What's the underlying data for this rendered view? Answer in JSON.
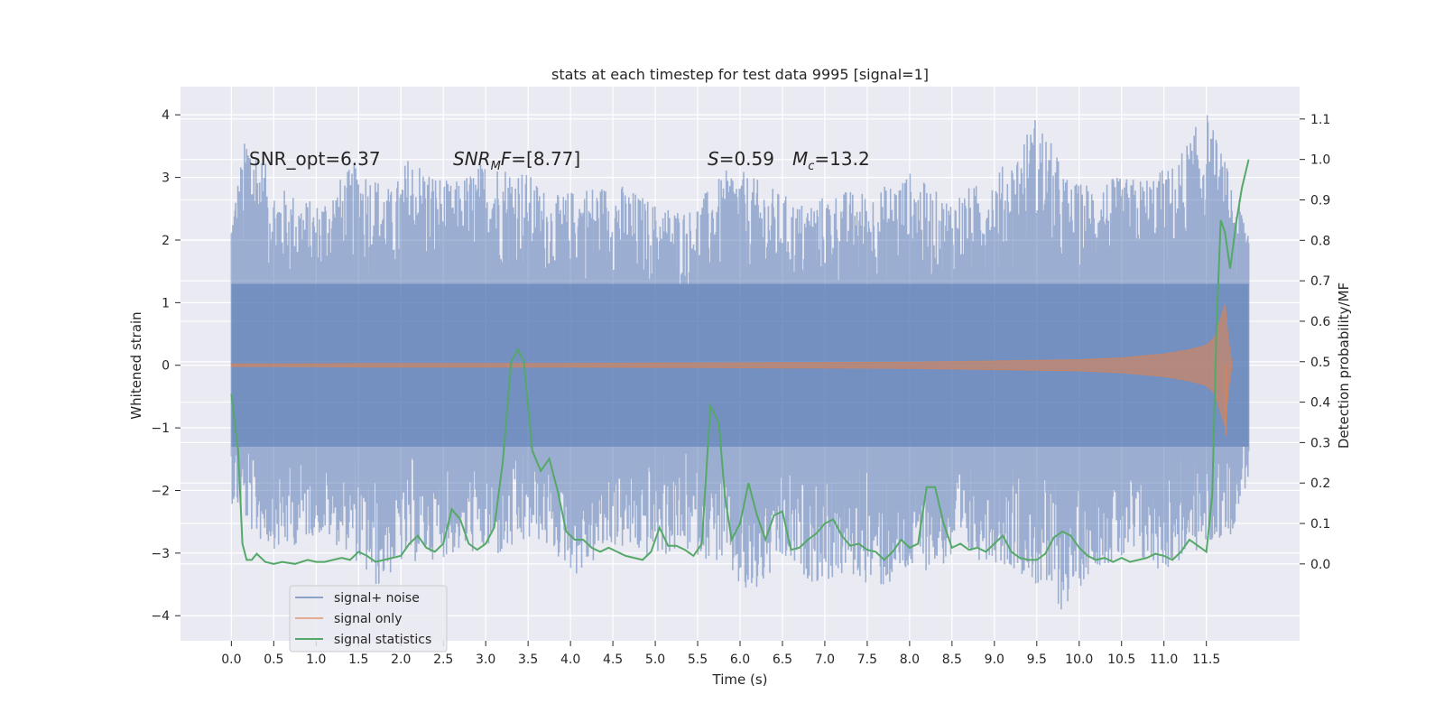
{
  "chart_data": {
    "type": "line",
    "title": "stats at each timestep for test data 9995 [signal=1]",
    "xlabel": "Time (s)",
    "ylabel": "Whitened strain",
    "y2label": "Detection probability/MF",
    "xlim": [
      -0.6,
      12.6
    ],
    "ylim": [
      -4.4,
      4.45
    ],
    "y2lim": [
      -0.19,
      1.18
    ],
    "xticks": [
      0.0,
      0.5,
      1.0,
      1.5,
      2.0,
      2.5,
      3.0,
      3.5,
      4.0,
      4.5,
      5.0,
      5.5,
      6.0,
      6.5,
      7.0,
      7.5,
      8.0,
      8.5,
      9.0,
      9.5,
      10.0,
      10.5,
      11.0,
      11.5
    ],
    "xtick_labels": [
      "0.0",
      "0.5",
      "1.0",
      "1.5",
      "2.0",
      "2.5",
      "3.0",
      "3.5",
      "4.0",
      "4.5",
      "5.0",
      "5.5",
      "6.0",
      "6.5",
      "7.0",
      "7.5",
      "8.0",
      "8.5",
      "9.0",
      "9.5",
      "10.0",
      "10.5",
      "11.0",
      "11.5"
    ],
    "yticks": [
      4,
      3,
      2,
      1,
      0,
      -1,
      -2,
      -3,
      -4
    ],
    "ytick_labels": [
      "4",
      "3",
      "2",
      "1",
      "0",
      "−1",
      "−2",
      "−3",
      "−4"
    ],
    "y2ticks": [
      1.1,
      1.0,
      0.9,
      0.8,
      0.7,
      0.6,
      0.5,
      0.4,
      0.3,
      0.2,
      0.1,
      0.0
    ],
    "y2tick_labels": [
      "1.1",
      "1.0",
      "0.9",
      "0.8",
      "0.7",
      "0.6",
      "0.5",
      "0.4",
      "0.3",
      "0.2",
      "0.1",
      "0.0"
    ],
    "grid": true,
    "legend_position": "bottom-left",
    "annotations": {
      "snr_opt": "SNR_opt=6.37",
      "snr_mf_sym": "SNR",
      "snr_mf_sub": "M",
      "snr_mf_sym2": "F",
      "snr_mf_val": "=[8.77]",
      "s_sym": "S",
      "s_val": "=0.59",
      "mc_sym": "M",
      "mc_sub": "c",
      "mc_val": "=13.2"
    },
    "series": [
      {
        "name": "signal+ noise",
        "color": "#4c72b0",
        "axis": "left",
        "x_range": [
          0.0,
          12.0
        ],
        "envelope_upper": [
          [
            0,
            2.5
          ],
          [
            0.2,
            3.9
          ],
          [
            0.5,
            2.9
          ],
          [
            1.0,
            2.6
          ],
          [
            1.5,
            3.3
          ],
          [
            1.9,
            2.8
          ],
          [
            2.1,
            3.4
          ],
          [
            2.6,
            2.9
          ],
          [
            3.0,
            3.3
          ],
          [
            3.4,
            3.2
          ],
          [
            3.8,
            2.7
          ],
          [
            4.2,
            2.9
          ],
          [
            4.6,
            2.9
          ],
          [
            5.0,
            2.6
          ],
          [
            5.4,
            2.5
          ],
          [
            5.9,
            3.2
          ],
          [
            6.3,
            2.9
          ],
          [
            6.7,
            2.6
          ],
          [
            7.2,
            2.8
          ],
          [
            7.6,
            2.8
          ],
          [
            8.0,
            3.1
          ],
          [
            8.4,
            2.7
          ],
          [
            8.8,
            2.9
          ],
          [
            9.2,
            3.3
          ],
          [
            9.5,
            4.05
          ],
          [
            9.9,
            2.9
          ],
          [
            10.3,
            3.0
          ],
          [
            10.7,
            3.0
          ],
          [
            11.1,
            3.2
          ],
          [
            11.5,
            4.1
          ],
          [
            11.9,
            2.6
          ],
          [
            12.0,
            2.4
          ]
        ],
        "envelope_lower": [
          [
            0,
            -2.2
          ],
          [
            0.3,
            -2.8
          ],
          [
            0.6,
            -3.0
          ],
          [
            1.0,
            -2.7
          ],
          [
            1.4,
            -3.0
          ],
          [
            1.7,
            -3.6
          ],
          [
            2.0,
            -3.2
          ],
          [
            2.4,
            -3.1
          ],
          [
            2.8,
            -3.0
          ],
          [
            3.2,
            -3.1
          ],
          [
            3.6,
            -2.8
          ],
          [
            4.1,
            -3.4
          ],
          [
            4.5,
            -2.9
          ],
          [
            4.9,
            -3.1
          ],
          [
            5.4,
            -3.0
          ],
          [
            5.8,
            -3.2
          ],
          [
            6.1,
            -3.85
          ],
          [
            6.5,
            -3.2
          ],
          [
            6.9,
            -3.5
          ],
          [
            7.3,
            -3.4
          ],
          [
            7.7,
            -3.6
          ],
          [
            8.1,
            -3.3
          ],
          [
            8.5,
            -3.2
          ],
          [
            8.9,
            -3.1
          ],
          [
            9.3,
            -3.3
          ],
          [
            9.8,
            -3.95
          ],
          [
            10.2,
            -3.2
          ],
          [
            10.7,
            -3.2
          ],
          [
            11.0,
            -3.3
          ],
          [
            11.4,
            -3.0
          ],
          [
            11.8,
            -2.7
          ],
          [
            12.0,
            -1.8
          ]
        ]
      },
      {
        "name": "signal only",
        "color": "#dd8452",
        "axis": "left",
        "x_range": [
          0.0,
          11.8
        ],
        "amplitude": [
          [
            0,
            0.02
          ],
          [
            2,
            0.03
          ],
          [
            4,
            0.03
          ],
          [
            6,
            0.04
          ],
          [
            8,
            0.05
          ],
          [
            9,
            0.07
          ],
          [
            10,
            0.09
          ],
          [
            10.5,
            0.12
          ],
          [
            11.0,
            0.18
          ],
          [
            11.3,
            0.25
          ],
          [
            11.5,
            0.32
          ],
          [
            11.6,
            0.45
          ],
          [
            11.68,
            0.8
          ],
          [
            11.72,
            1.0
          ],
          [
            11.76,
            0.4
          ],
          [
            11.8,
            0.05
          ]
        ],
        "min_extreme": [
          11.73,
          -1.12
        ]
      },
      {
        "name": "signal statistics",
        "color": "#55a868",
        "axis": "right",
        "x": [
          0.0,
          0.08,
          0.13,
          0.18,
          0.24,
          0.3,
          0.4,
          0.5,
          0.6,
          0.75,
          0.9,
          1.0,
          1.1,
          1.2,
          1.3,
          1.4,
          1.5,
          1.6,
          1.7,
          1.8,
          1.9,
          2.0,
          2.1,
          2.2,
          2.3,
          2.4,
          2.5,
          2.6,
          2.7,
          2.8,
          2.9,
          3.0,
          3.1,
          3.2,
          3.3,
          3.38,
          3.45,
          3.55,
          3.65,
          3.75,
          3.85,
          3.95,
          4.05,
          4.15,
          4.25,
          4.35,
          4.45,
          4.55,
          4.65,
          4.75,
          4.85,
          4.95,
          5.05,
          5.15,
          5.25,
          5.35,
          5.45,
          5.55,
          5.65,
          5.75,
          5.82,
          5.9,
          6.0,
          6.1,
          6.2,
          6.3,
          6.4,
          6.5,
          6.6,
          6.7,
          6.8,
          6.9,
          7.0,
          7.1,
          7.2,
          7.3,
          7.4,
          7.5,
          7.6,
          7.7,
          7.8,
          7.9,
          8.0,
          8.1,
          8.2,
          8.3,
          8.4,
          8.5,
          8.6,
          8.7,
          8.8,
          8.9,
          9.0,
          9.1,
          9.2,
          9.3,
          9.4,
          9.5,
          9.6,
          9.7,
          9.8,
          9.9,
          10.0,
          10.1,
          10.2,
          10.3,
          10.4,
          10.5,
          10.6,
          10.7,
          10.8,
          10.9,
          11.0,
          11.1,
          11.2,
          11.3,
          11.4,
          11.5,
          11.57,
          11.62,
          11.67,
          11.72,
          11.78,
          11.85,
          11.92,
          12.0
        ],
        "y": [
          0.42,
          0.28,
          0.05,
          0.01,
          0.01,
          0.025,
          0.005,
          0.0,
          0.005,
          0.0,
          0.01,
          0.005,
          0.005,
          0.01,
          0.015,
          0.01,
          0.03,
          0.02,
          0.005,
          0.01,
          0.015,
          0.02,
          0.05,
          0.07,
          0.04,
          0.03,
          0.05,
          0.135,
          0.11,
          0.05,
          0.035,
          0.05,
          0.09,
          0.25,
          0.5,
          0.53,
          0.5,
          0.28,
          0.23,
          0.26,
          0.18,
          0.08,
          0.06,
          0.06,
          0.04,
          0.03,
          0.04,
          0.03,
          0.02,
          0.015,
          0.01,
          0.03,
          0.09,
          0.045,
          0.045,
          0.035,
          0.02,
          0.05,
          0.39,
          0.35,
          0.17,
          0.06,
          0.1,
          0.2,
          0.12,
          0.06,
          0.12,
          0.13,
          0.035,
          0.04,
          0.06,
          0.075,
          0.1,
          0.11,
          0.07,
          0.045,
          0.05,
          0.035,
          0.03,
          0.01,
          0.03,
          0.06,
          0.04,
          0.05,
          0.19,
          0.19,
          0.1,
          0.04,
          0.05,
          0.035,
          0.04,
          0.03,
          0.05,
          0.07,
          0.03,
          0.015,
          0.01,
          0.01,
          0.025,
          0.065,
          0.08,
          0.07,
          0.04,
          0.02,
          0.01,
          0.015,
          0.005,
          0.015,
          0.005,
          0.01,
          0.015,
          0.025,
          0.02,
          0.01,
          0.03,
          0.06,
          0.045,
          0.03,
          0.17,
          0.58,
          0.85,
          0.82,
          0.73,
          0.84,
          0.93,
          1.0
        ]
      }
    ]
  }
}
